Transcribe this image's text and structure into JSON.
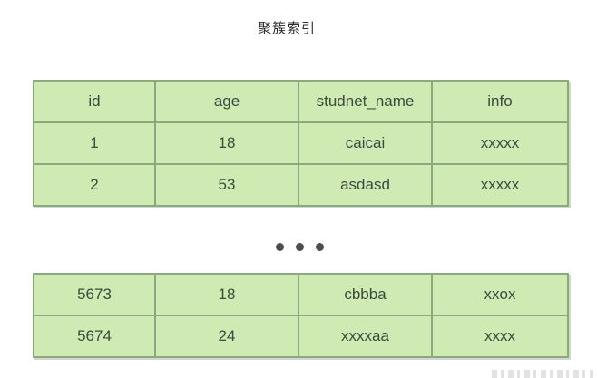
{
  "title": "聚簇索引",
  "ellipsis": {
    "label": "• • •"
  },
  "top_table": {
    "columns": [
      "id",
      "age",
      "studnet_name",
      "info"
    ],
    "rows": [
      [
        "1",
        "18",
        "caicai",
        "xxxxx"
      ],
      [
        "2",
        "53",
        "asdasd",
        "xxxxx"
      ]
    ]
  },
  "bottom_table": {
    "rows": [
      [
        "5673",
        "18",
        "cbbba",
        "xxox"
      ],
      [
        "5674",
        "24",
        "xxxxaa",
        "xxxx"
      ]
    ]
  },
  "colors": {
    "cell_fill": "#d0eab4",
    "inner_border": "#8aa97f",
    "outer_border": "#9aa296",
    "cell_text": "#3c4a3c",
    "title_text": "#2d2d2d",
    "dot": "#4d4d4d"
  }
}
